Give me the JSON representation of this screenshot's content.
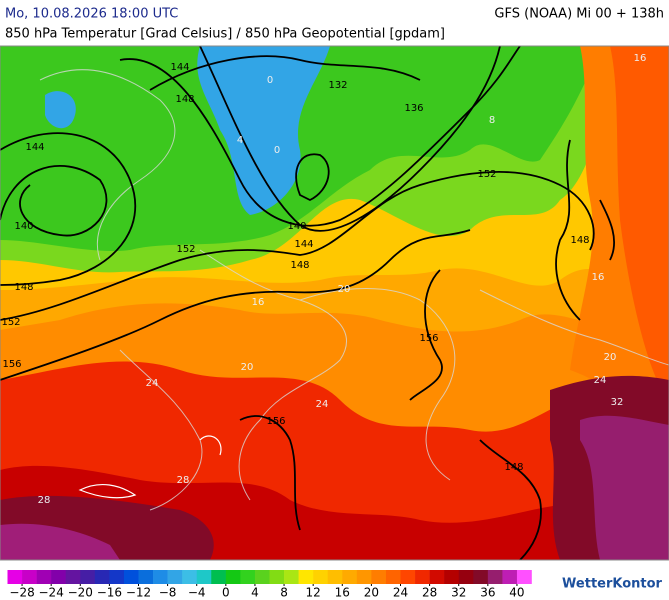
{
  "header": {
    "datetime": "Mo, 10.08.2026 18:00 UTC",
    "model": "GFS (NOAA) Mi 00 + 138h",
    "subtitle": "850 hPa Temperatur [Grad Celsius] / 850 hPa Geopotential [gpdam]"
  },
  "map": {
    "geopotential_labels": [
      "144",
      "148",
      "132",
      "136",
      "144",
      "140",
      "152",
      "140",
      "144",
      "148",
      "148",
      "152",
      "152",
      "156",
      "156",
      "156",
      "148",
      "148"
    ],
    "temperature_labels": [
      "0",
      "4",
      "8",
      "0",
      "16",
      "20",
      "20",
      "24",
      "24",
      "28",
      "28",
      "32",
      "24",
      "20",
      "16",
      "16"
    ]
  },
  "colorbar": {
    "lim": [
      -30,
      42
    ],
    "colors": [
      "#e600e6",
      "#c800c8",
      "#a000b4",
      "#8200aa",
      "#6414a0",
      "#461ea5",
      "#2828b4",
      "#1437c8",
      "#0050dc",
      "#0a6edc",
      "#1e8ce6",
      "#32a5e6",
      "#3cbee6",
      "#1ec8c8",
      "#00be50",
      "#14c814",
      "#32d21e",
      "#5ad21e",
      "#82dc14",
      "#aae614",
      "#ffe600",
      "#ffd200",
      "#ffbe00",
      "#ffaa00",
      "#ff9600",
      "#ff7d00",
      "#ff6400",
      "#ff4600",
      "#f02800",
      "#d20a00",
      "#b40000",
      "#96000f",
      "#820a28",
      "#961e6e",
      "#be1eb4",
      "#ff50ff"
    ],
    "ticks": [
      {
        "value": -28,
        "label": "−28"
      },
      {
        "value": -24,
        "label": "−24"
      },
      {
        "value": -20,
        "label": "−20"
      },
      {
        "value": -16,
        "label": "−16"
      },
      {
        "value": -12,
        "label": "−12"
      },
      {
        "value": -8,
        "label": "−8"
      },
      {
        "value": -4,
        "label": "−4"
      },
      0,
      4,
      8,
      12,
      16,
      20,
      24,
      28,
      32,
      36,
      40
    ]
  },
  "brand": "WetterKontor"
}
